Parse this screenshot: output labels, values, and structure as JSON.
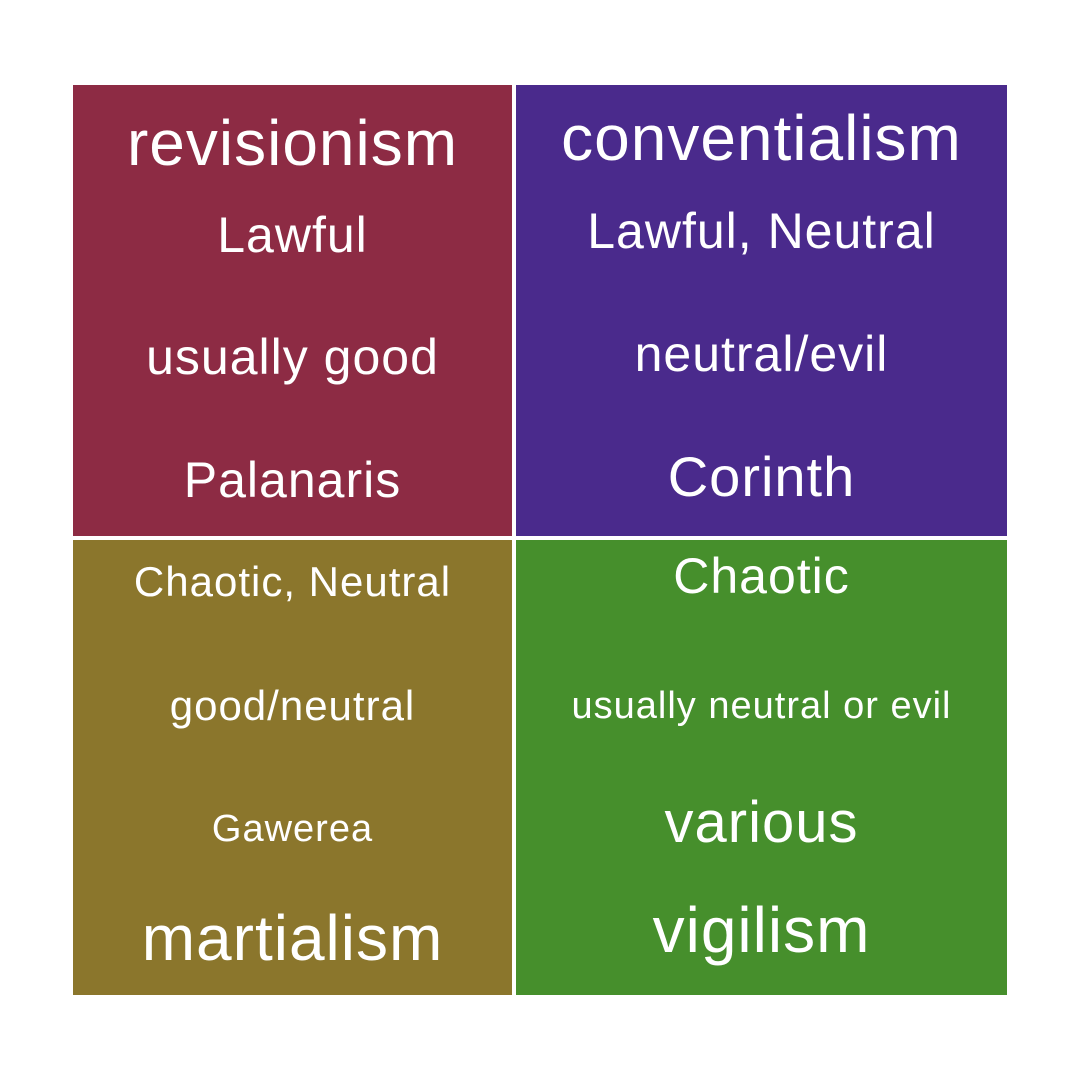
{
  "colors": {
    "top_left": "#8d2b44",
    "top_right": "#4a2a8c",
    "bottom_left": "#8b762c",
    "bottom_right": "#468f2c",
    "text": "#ffffff"
  },
  "quadrants": {
    "top_left": {
      "title": "revisionism",
      "law": "Lawful",
      "morality": "usually good",
      "place": "Palanaris"
    },
    "top_right": {
      "title": "conventialism",
      "law": "Lawful, Neutral",
      "morality": "neutral/evil",
      "place": "Corinth"
    },
    "bottom_left": {
      "law": "Chaotic, Neutral",
      "morality": "good/neutral",
      "place": "Gawerea",
      "title": "martialism"
    },
    "bottom_right": {
      "law": "Chaotic",
      "morality": "usually neutral or evil",
      "place": "various",
      "title": "vigilism"
    }
  }
}
